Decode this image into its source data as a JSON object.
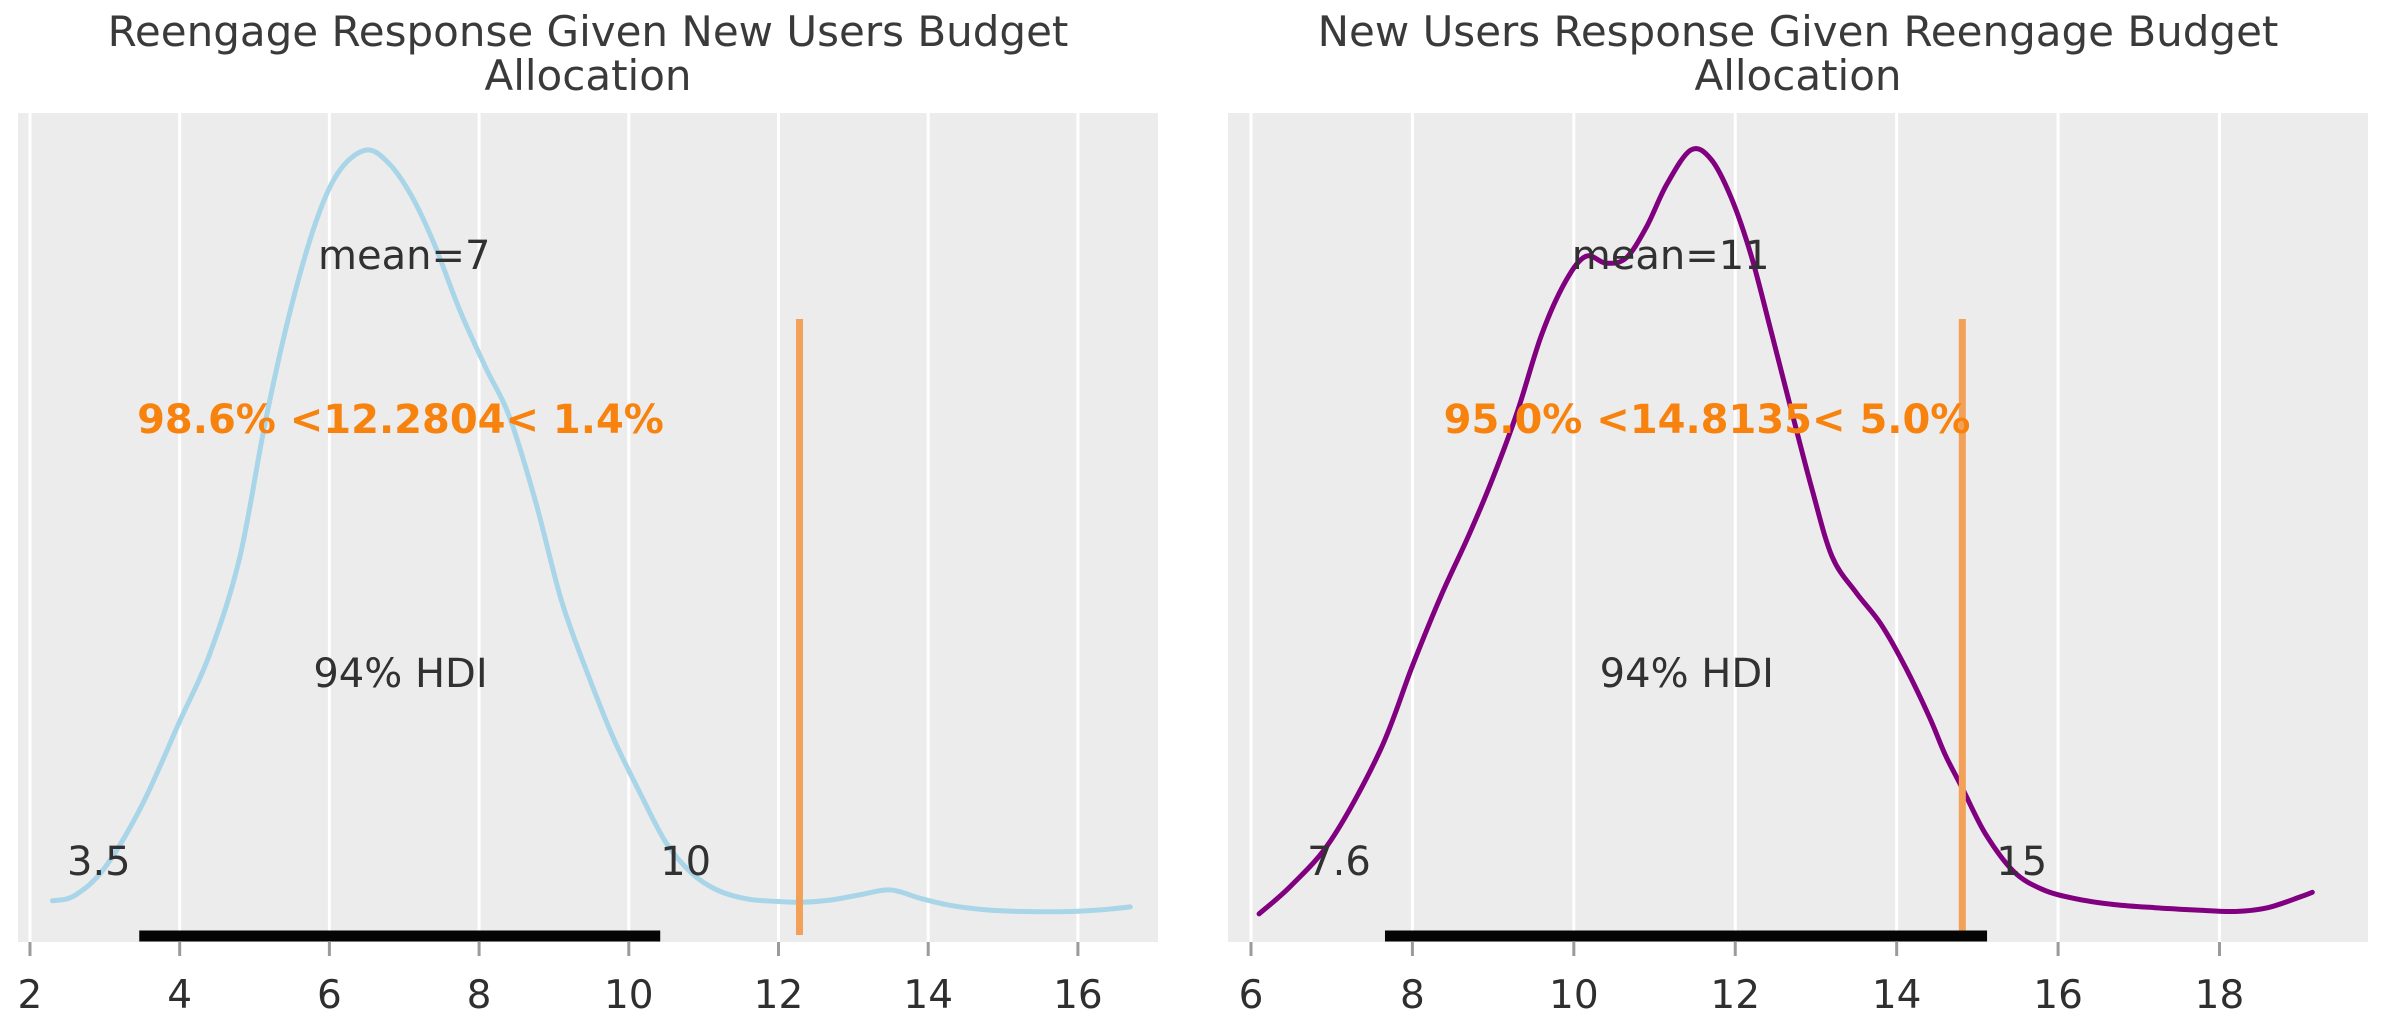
{
  "figure": {
    "kind": "posterior-density-figure",
    "background": "#ffffff"
  },
  "style": {
    "panel_bg": "#ececec",
    "grid_color": "#ffffff",
    "text_color": "#313131",
    "tick_mark_color": "#9b9b9b",
    "tick_label_color": "#2f2f2f",
    "hdi_bar_color": "#050505",
    "ref_line_color": "#f3a158",
    "ref_text_color": "#f7820d"
  },
  "chart_data": [
    {
      "type": "kde",
      "title": "Reengage Response Given New Users Budget Allocation",
      "title_lines": [
        "Reengage Response Given New Users Budget",
        "Allocation"
      ],
      "curve_color": "#a9d5e8",
      "mean": {
        "value": 7,
        "label": "mean=7"
      },
      "hdi": {
        "lo": 3.5,
        "hi": 10,
        "label": "94% HDI",
        "lo_label": "3.5",
        "hi_label": "10"
      },
      "ref_val": {
        "value": 12.2804,
        "label": "98.6% <12.2804< 1.4%",
        "pct_below": "98.6%",
        "pct_above": "1.4%"
      },
      "x_axis": {
        "ticks": [
          2,
          4,
          6,
          8,
          10,
          12,
          14,
          16
        ],
        "range": [
          1.84,
          17.07
        ]
      },
      "layout_hints": {
        "bar_from": 3.46,
        "bar_to": 10.42,
        "mean_label_x": 7.0,
        "ref_label_x": 6.95,
        "hdi_label_x": 6.95,
        "lo_label_x": 2.92,
        "hi_label_x": 10.76
      },
      "curve": {
        "x": [
          2.3,
          2.6,
          3.0,
          3.5,
          4.0,
          4.4,
          4.8,
          5.15,
          5.5,
          5.85,
          6.15,
          6.5,
          6.8,
          7.1,
          7.4,
          7.75,
          8.1,
          8.4,
          8.75,
          9.1,
          9.45,
          9.8,
          10.15,
          10.5,
          10.85,
          11.2,
          11.6,
          12.0,
          12.3,
          12.7,
          13.1,
          13.5,
          13.9,
          14.3,
          14.8,
          15.3,
          15.9,
          16.4,
          16.7
        ],
        "density": [
          0.025,
          0.032,
          0.068,
          0.15,
          0.258,
          0.345,
          0.47,
          0.65,
          0.8,
          0.915,
          0.975,
          1.0,
          0.982,
          0.94,
          0.878,
          0.79,
          0.715,
          0.655,
          0.545,
          0.415,
          0.32,
          0.235,
          0.165,
          0.1,
          0.06,
          0.038,
          0.027,
          0.024,
          0.023,
          0.026,
          0.033,
          0.039,
          0.028,
          0.019,
          0.013,
          0.011,
          0.011,
          0.014,
          0.017
        ]
      }
    },
    {
      "type": "kde",
      "title": "New Users Response Given Reengage Budget Allocation",
      "title_lines": [
        "New Users Response Given Reengage Budget",
        "Allocation"
      ],
      "curve_color": "#800080",
      "mean": {
        "value": 11,
        "label": "mean=11"
      },
      "hdi": {
        "lo": 7.6,
        "hi": 15,
        "label": "94% HDI",
        "lo_label": "7.6",
        "hi_label": "15"
      },
      "ref_val": {
        "value": 14.8135,
        "label": "95.0% <14.8135< 5.0%",
        "pct_below": "95.0%",
        "pct_above": "5.0%"
      },
      "x_axis": {
        "ticks": [
          6,
          8,
          10,
          12,
          14,
          16,
          18
        ],
        "range": [
          5.715,
          19.84
        ]
      },
      "layout_hints": {
        "bar_from": 7.66,
        "bar_to": 15.12,
        "mean_label_x": 11.2,
        "ref_label_x": 11.65,
        "hdi_label_x": 11.4,
        "lo_label_x": 7.09,
        "hi_label_x": 15.55
      },
      "curve": {
        "x": [
          6.1,
          6.5,
          7.0,
          7.6,
          8.0,
          8.35,
          8.7,
          9.0,
          9.3,
          9.6,
          9.9,
          10.15,
          10.4,
          10.65,
          10.9,
          11.15,
          11.45,
          11.7,
          11.95,
          12.2,
          12.45,
          12.7,
          12.95,
          13.2,
          13.5,
          13.8,
          14.1,
          14.4,
          14.6,
          14.81,
          15.1,
          15.45,
          15.8,
          16.2,
          16.7,
          17.2,
          17.7,
          18.2,
          18.6,
          19.0,
          19.15
        ],
        "density": [
          0.008,
          0.045,
          0.105,
          0.22,
          0.33,
          0.42,
          0.5,
          0.575,
          0.66,
          0.76,
          0.83,
          0.862,
          0.853,
          0.86,
          0.9,
          0.955,
          1.0,
          0.988,
          0.938,
          0.862,
          0.762,
          0.66,
          0.56,
          0.472,
          0.425,
          0.385,
          0.33,
          0.265,
          0.215,
          0.172,
          0.112,
          0.063,
          0.04,
          0.028,
          0.02,
          0.016,
          0.013,
          0.011,
          0.016,
          0.03,
          0.036
        ]
      }
    }
  ]
}
